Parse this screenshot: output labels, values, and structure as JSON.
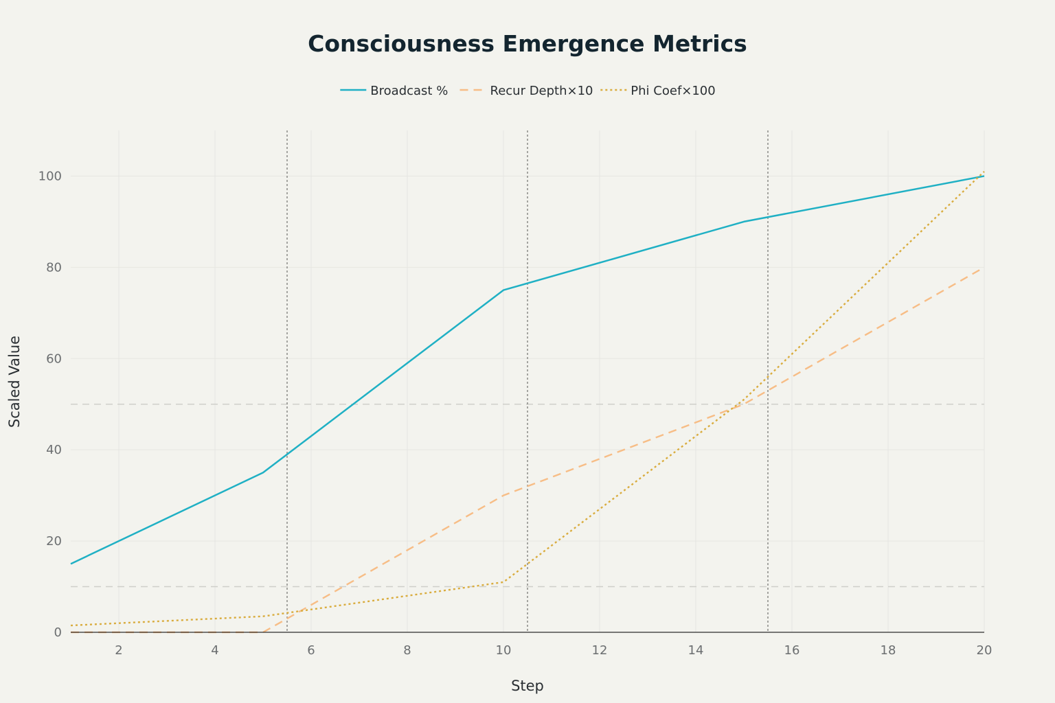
{
  "chart_data": {
    "type": "line",
    "title": "Consciousness Emergence Metrics",
    "xlabel": "Step",
    "ylabel": "Scaled Value",
    "xlim": [
      1,
      20
    ],
    "ylim": [
      0,
      110
    ],
    "x_ticks": [
      "2",
      "4",
      "6",
      "8",
      "10",
      "12",
      "14",
      "16",
      "18",
      "20"
    ],
    "y_ticks": [
      "0",
      "20",
      "40",
      "60",
      "80",
      "100"
    ],
    "grid": true,
    "legend_position": "top-center",
    "series": [
      {
        "name": "Broadcast %",
        "style": "solid",
        "color": "#1fb0c4",
        "x": [
          1,
          5,
          10,
          15,
          20
        ],
        "values": [
          15,
          35,
          75,
          90,
          100
        ]
      },
      {
        "name": "Recur Depth×10",
        "style": "dashed",
        "color": "#f7bd86",
        "x": [
          1,
          5,
          10,
          15,
          20
        ],
        "values": [
          0,
          0,
          30,
          50,
          80
        ]
      },
      {
        "name": "Phi Coef×100",
        "style": "dotted",
        "color": "#d9ac3e",
        "x": [
          1,
          5,
          10,
          15,
          20
        ],
        "values": [
          1.5,
          3.5,
          11,
          51,
          101
        ]
      }
    ],
    "vertical_reference_lines": [
      5.5,
      10.5,
      15.5
    ],
    "horizontal_reference_lines": [
      10,
      50
    ]
  }
}
